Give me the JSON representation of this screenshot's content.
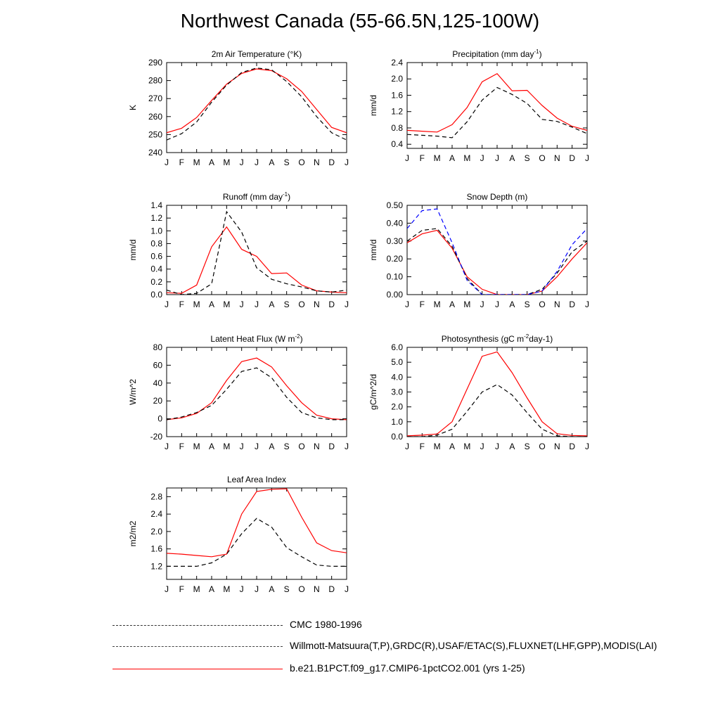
{
  "title": "Northwest Canada (55-66.5N,125-100W)",
  "months": [
    "J",
    "F",
    "M",
    "A",
    "M",
    "J",
    "J",
    "A",
    "S",
    "O",
    "N",
    "D",
    "J"
  ],
  "colors": {
    "model": "#ff0000",
    "obs": "#000000",
    "obs_alt": "#0000ff"
  },
  "legend": {
    "cmc": "CMC 1980-1996",
    "obs": "Willmott-Matsuura(T,P),GRDC(R),USAF/ETAC(S),FLUXNET(LHF,GPP),MODIS(LAI)",
    "model": "b.e21.B1PCT.f09_g17.CMIP6-1pctCO2.001 (yrs 1-25)"
  },
  "chart_data": [
    {
      "type": "line",
      "title": "2m Air Temperature (°K)",
      "ylabel": "K",
      "ylim": [
        240,
        290
      ],
      "yticks": [
        "240",
        "250",
        "260",
        "270",
        "280",
        "290"
      ],
      "series": [
        {
          "name": "model",
          "style": "solid",
          "color": "#ff0000",
          "values": [
            251,
            253.5,
            259.5,
            269,
            278,
            284,
            286.5,
            285.5,
            281,
            274,
            264,
            254,
            251
          ]
        },
        {
          "name": "obs",
          "style": "dashed",
          "color": "#000000",
          "values": [
            247,
            250.5,
            257,
            268,
            277.5,
            284.5,
            287,
            286,
            279.5,
            271,
            260,
            251,
            247
          ]
        }
      ]
    },
    {
      "type": "line",
      "title": "Precipitation (mm day-1)",
      "ylabel": "mm/d",
      "ylim": [
        0.3,
        2.4
      ],
      "yticks": [
        "0.4",
        "0.8",
        "1.2",
        "1.6",
        "2.0",
        "2.4"
      ],
      "series": [
        {
          "name": "model",
          "style": "solid",
          "color": "#ff0000",
          "values": [
            0.74,
            0.72,
            0.7,
            0.88,
            1.3,
            1.93,
            2.13,
            1.71,
            1.72,
            1.35,
            1.04,
            0.84,
            0.74
          ]
        },
        {
          "name": "obs",
          "style": "dashed",
          "color": "#000000",
          "values": [
            0.64,
            0.62,
            0.6,
            0.56,
            0.95,
            1.48,
            1.79,
            1.62,
            1.4,
            1.01,
            0.96,
            0.82,
            0.66
          ]
        }
      ]
    },
    {
      "type": "line",
      "title": "Runoff (mm day-1)",
      "ylabel": "mm/d",
      "ylim": [
        0.0,
        1.4
      ],
      "yticks": [
        "0.0",
        "0.2",
        "0.4",
        "0.6",
        "0.8",
        "1.0",
        "1.2",
        "1.4"
      ],
      "series": [
        {
          "name": "model",
          "style": "solid",
          "color": "#ff0000",
          "values": [
            0.03,
            0.02,
            0.15,
            0.75,
            1.06,
            0.71,
            0.6,
            0.33,
            0.34,
            0.15,
            0.06,
            0.04,
            0.03
          ]
        },
        {
          "name": "obs",
          "style": "dashed",
          "color": "#000000",
          "values": [
            0.07,
            0.0,
            0.02,
            0.17,
            1.3,
            0.98,
            0.42,
            0.24,
            0.17,
            0.12,
            0.06,
            0.04,
            0.07
          ]
        }
      ]
    },
    {
      "type": "line",
      "title": "Snow Depth (m)",
      "ylabel": "mm/d",
      "ylim": [
        0.0,
        0.5
      ],
      "yticks": [
        "0.00",
        "0.10",
        "0.20",
        "0.30",
        "0.40",
        "0.50"
      ],
      "series": [
        {
          "name": "model",
          "style": "solid",
          "color": "#ff0000",
          "values": [
            0.29,
            0.34,
            0.36,
            0.26,
            0.1,
            0.03,
            0.0,
            0.0,
            0.0,
            0.02,
            0.1,
            0.2,
            0.29
          ]
        },
        {
          "name": "cmc",
          "style": "dashed",
          "color": "#000000",
          "values": [
            0.3,
            0.36,
            0.37,
            0.27,
            0.09,
            0.0,
            0.0,
            0.0,
            0.0,
            0.03,
            0.12,
            0.24,
            0.3
          ]
        },
        {
          "name": "obs",
          "style": "dashed",
          "color": "#0000ff",
          "values": [
            0.37,
            0.47,
            0.48,
            0.29,
            0.08,
            0.0,
            0.0,
            0.0,
            0.0,
            0.02,
            0.13,
            0.28,
            0.37
          ]
        }
      ]
    },
    {
      "type": "line",
      "title": "Latent Heat Flux (W m-2)",
      "ylabel": "W/m^2",
      "ylim": [
        -20,
        80
      ],
      "yticks": [
        "-20",
        "0",
        "20",
        "40",
        "60",
        "80"
      ],
      "series": [
        {
          "name": "model",
          "style": "solid",
          "color": "#ff0000",
          "values": [
            -1,
            1,
            6,
            18,
            43,
            64,
            68,
            58,
            37,
            18,
            4,
            0,
            -1
          ]
        },
        {
          "name": "obs",
          "style": "dashed",
          "color": "#000000",
          "values": [
            -1,
            2,
            7,
            15,
            33,
            53,
            57,
            46,
            24,
            7,
            1,
            -1,
            -1
          ]
        }
      ]
    },
    {
      "type": "line",
      "title": "Photosynthesis (gC m-2day-1)",
      "ylabel": "gC/m^2/d",
      "ylim": [
        0.0,
        6.0
      ],
      "yticks": [
        "0.0",
        "1.0",
        "2.0",
        "3.0",
        "4.0",
        "5.0",
        "6.0"
      ],
      "series": [
        {
          "name": "model",
          "style": "solid",
          "color": "#ff0000",
          "values": [
            0.05,
            0.1,
            0.18,
            1.0,
            3.2,
            5.4,
            5.7,
            4.3,
            2.6,
            1.0,
            0.2,
            0.08,
            0.05
          ]
        },
        {
          "name": "obs",
          "style": "dashed",
          "color": "#000000",
          "values": [
            0.0,
            0.0,
            0.1,
            0.5,
            1.7,
            3.0,
            3.5,
            2.8,
            1.6,
            0.5,
            0.05,
            0.0,
            0.0
          ]
        }
      ]
    },
    {
      "type": "line",
      "title": "Leaf Area Index",
      "ylabel": "m2/m2",
      "ylim": [
        0.9,
        3.0
      ],
      "yticks": [
        "1.2",
        "1.6",
        "2.0",
        "2.4",
        "2.8"
      ],
      "series": [
        {
          "name": "model",
          "style": "solid",
          "color": "#ff0000",
          "values": [
            1.5,
            1.48,
            1.45,
            1.42,
            1.48,
            2.4,
            2.92,
            2.97,
            2.98,
            2.33,
            1.74,
            1.56,
            1.51
          ]
        },
        {
          "name": "obs",
          "style": "dashed",
          "color": "#000000",
          "values": [
            1.2,
            1.2,
            1.2,
            1.28,
            1.48,
            1.95,
            2.3,
            2.1,
            1.63,
            1.42,
            1.23,
            1.2,
            1.2
          ]
        }
      ]
    }
  ]
}
